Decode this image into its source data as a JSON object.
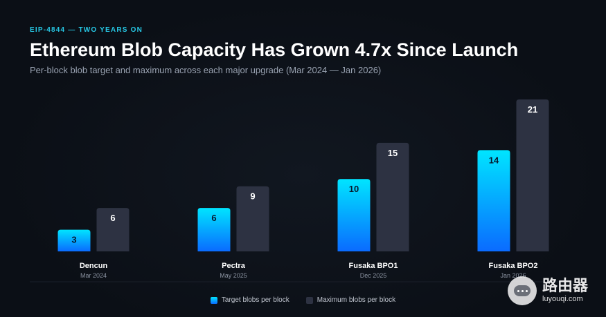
{
  "header": {
    "eyebrow": "EIP-4844 — TWO YEARS ON",
    "title": "Ethereum Blob Capacity Has Grown 4.7x Since Launch",
    "subtitle": "Per-block blob target and maximum across each major upgrade (Mar 2024 — Jan 2026)"
  },
  "colors": {
    "target_top": "#00e5ff",
    "target_bottom": "#0a6bff",
    "maximum": "#2d3242",
    "eyebrow": "#27c9e6"
  },
  "chart_data": {
    "type": "bar",
    "categories": [
      "Dencun",
      "Pectra",
      "Fusaka BPO1",
      "Fusaka BPO2"
    ],
    "category_dates": [
      "Mar 2024",
      "May 2025",
      "Dec 2025",
      "Jan 2026"
    ],
    "series": [
      {
        "name": "Target blobs per block",
        "values": [
          3,
          6,
          10,
          14
        ]
      },
      {
        "name": "Maximum blobs per block",
        "values": [
          6,
          9,
          15,
          21
        ]
      }
    ],
    "ylim": [
      0,
      21
    ],
    "grid": false,
    "legend": "bottom-center",
    "data_labels": true
  },
  "legend": {
    "target_label": "Target blobs per block",
    "max_label": "Maximum blobs per block"
  },
  "watermark": {
    "icon": "router-chat-icon",
    "text_cn": "路由器",
    "text_url": "luyouqi.com"
  }
}
